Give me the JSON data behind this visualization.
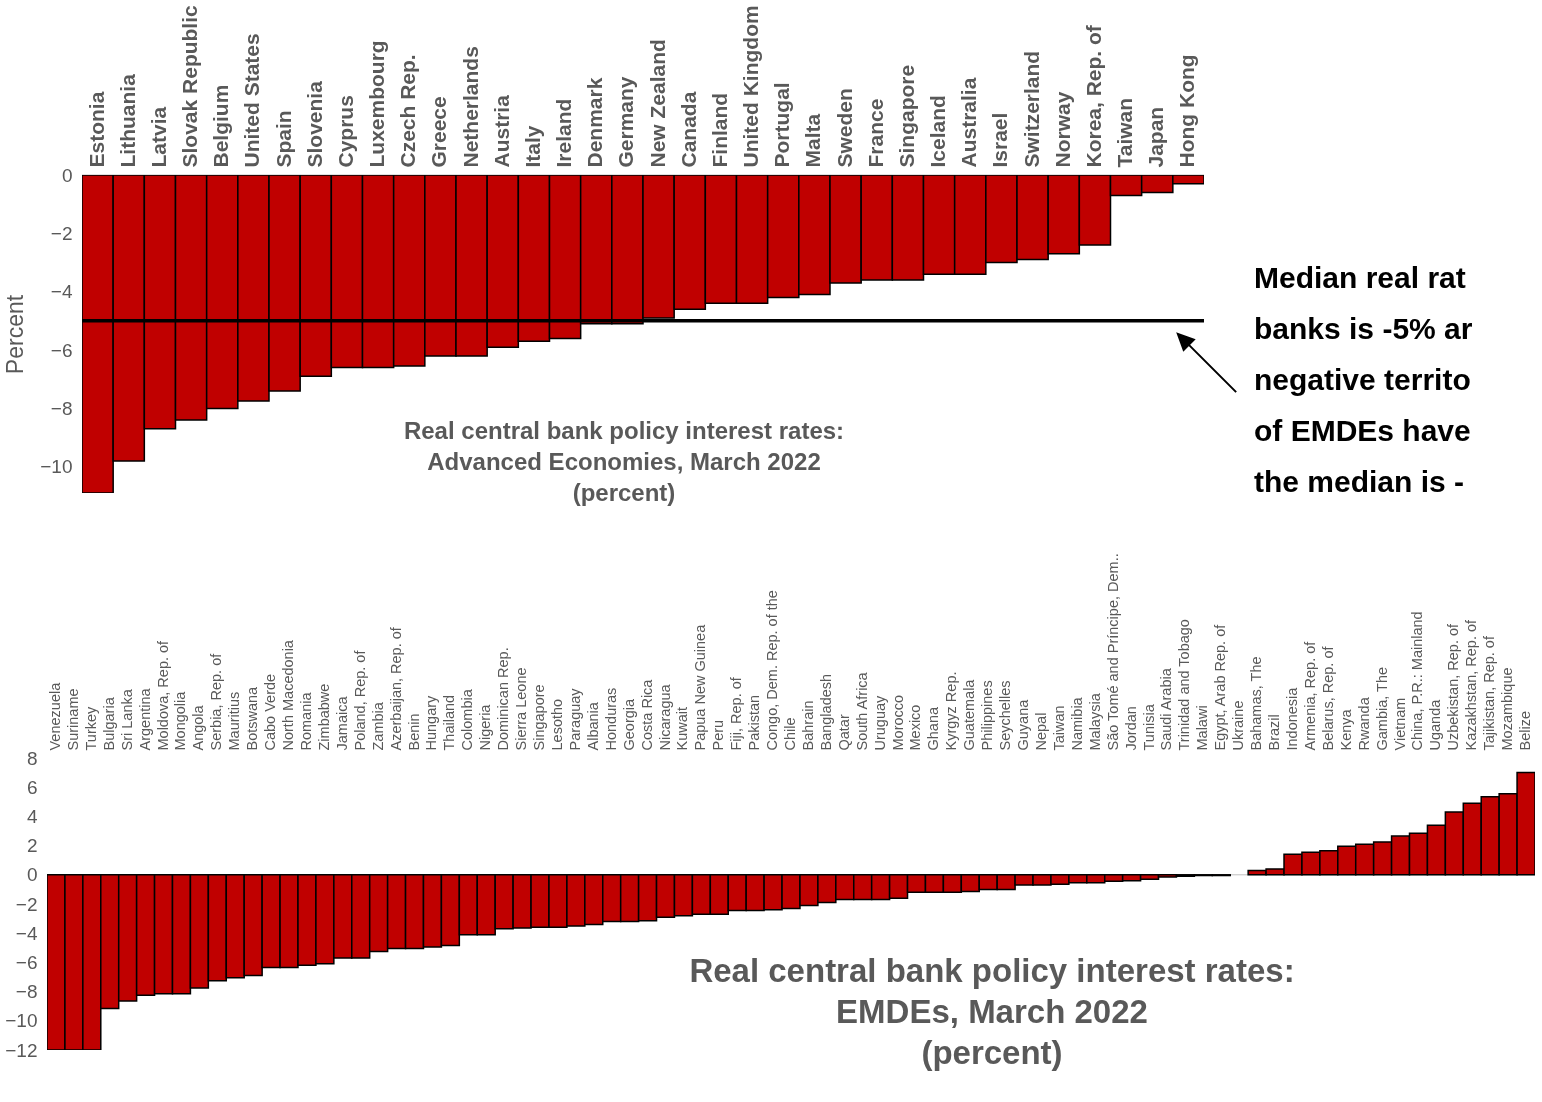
{
  "chart_data": [
    {
      "type": "bar",
      "title": "Real central bank policy interest rates:\nAdvanced Economies, March 2022\n(percent)",
      "ylabel": "Percent",
      "categories": [
        "Estonia",
        "Lithuania",
        "Latvia",
        "Slovak Republic",
        "Belgium",
        "United States",
        "Spain",
        "Slovenia",
        "Cyprus",
        "Luxembourg",
        "Czech Rep.",
        "Greece",
        "Netherlands",
        "Austria",
        "Italy",
        "Ireland",
        "Denmark",
        "Germany",
        "New Zealand",
        "Canada",
        "Finland",
        "United Kingdom",
        "Portugal",
        "Malta",
        "Sweden",
        "France",
        "Singapore",
        "Iceland",
        "Australia",
        "Israel",
        "Switzerland",
        "Norway",
        "Korea, Rep. of",
        "Taiwan",
        "Japan",
        "Hong Kong"
      ],
      "values": [
        -10.9,
        -9.8,
        -8.7,
        -8.4,
        -8.0,
        -7.75,
        -7.4,
        -6.9,
        -6.6,
        -6.6,
        -6.55,
        -6.2,
        -6.2,
        -5.9,
        -5.7,
        -5.6,
        -5.1,
        -5.1,
        -4.9,
        -4.6,
        -4.4,
        -4.4,
        -4.2,
        -4.1,
        -3.7,
        -3.6,
        -3.6,
        -3.4,
        -3.4,
        -3.0,
        -2.9,
        -2.7,
        -2.4,
        -0.7,
        -0.6,
        -0.3
      ],
      "color": "#c00000",
      "ylim": [
        -10.9,
        0
      ],
      "yticks": [
        0,
        -2,
        -4,
        -6,
        -8,
        -10
      ],
      "ref_lines": [
        {
          "axis": "y",
          "value": -5,
          "color": "#000000"
        }
      ],
      "annotations": [
        "Median real rat\nbanks is -5%  ar\nnegative territo\nof EMDEs have\nthe median is -"
      ]
    },
    {
      "type": "bar",
      "title": "Real central bank policy interest rates:\nEMDEs, March 2022\n(percent)",
      "categories": [
        "Venezuela",
        "Suriname",
        "Turkey",
        "Bulgaria",
        "Sri Lanka",
        "Argentina",
        "Moldova, Rep. of",
        "Mongolia",
        "Angola",
        "Serbia, Rep. of",
        "Mauritius",
        "Botswana",
        "Cabo Verde",
        "North Macedonia",
        "Romania",
        "Zimbabwe",
        "Jamaica",
        "Poland, Rep. of",
        "Zambia",
        "Azerbaijan, Rep. of",
        "Benin",
        "Hungary",
        "Thailand",
        "Colombia",
        "Nigeria",
        "Dominican Rep.",
        "Sierra Leone",
        "Singapore",
        "Lesotho",
        "Paraguay",
        "Albania",
        "Honduras",
        "Georgia",
        "Costa Rica",
        "Nicaragua",
        "Kuwait",
        "Papua New Guinea",
        "Peru",
        "Fiji, Rep. of",
        "Pakistan",
        "Congo, Dem. Rep. of the",
        "Chile",
        "Bahrain",
        "Bangladesh",
        "Qatar",
        "South Africa",
        "Uruguay",
        "Morocco",
        "Mexico",
        "Ghana",
        "Kyrgyz Rep.",
        "Guatemala",
        "Philippines",
        "Seychelles",
        "Guyana",
        "Nepal",
        "Taiwan",
        "Namibia",
        "Malaysia",
        "São Tomé and Príncipe, Dem..",
        "Jordan",
        "Tunisia",
        "Saudi Arabia",
        "Trinidad and Tobago",
        "Malawi",
        "Egypt, Arab Rep. of",
        "Ukraine",
        "Bahamas, The",
        "Brazil",
        "Indonesia",
        "Armenia, Rep. of",
        "Belarus, Rep. of",
        "Kenya",
        "Rwanda",
        "Gambia, The",
        "Vietnam",
        "China, P.R.: Mainland",
        "Uganda",
        "Uzbekistan, Rep. of",
        "Kazakhstan, Rep. of",
        "Tajikistan, Rep. of",
        "Mozambique",
        "Belize"
      ],
      "values": [
        -12,
        -12,
        -12,
        -9.15,
        -8.65,
        -8.25,
        -8.15,
        -8.15,
        -7.75,
        -7.25,
        -7.05,
        -6.9,
        -6.35,
        -6.35,
        -6.2,
        -6.1,
        -5.7,
        -5.7,
        -5.25,
        -5.05,
        -5.05,
        -4.95,
        -4.85,
        -4.1,
        -4.1,
        -3.7,
        -3.65,
        -3.6,
        -3.6,
        -3.5,
        -3.4,
        -3.2,
        -3.2,
        -3.15,
        -2.9,
        -2.8,
        -2.7,
        -2.7,
        -2.45,
        -2.45,
        -2.4,
        -2.3,
        -2.1,
        -1.9,
        -1.7,
        -1.7,
        -1.7,
        -1.6,
        -1.2,
        -1.2,
        -1.2,
        -1.15,
        -1.0,
        -1.0,
        -0.7,
        -0.7,
        -0.65,
        -0.55,
        -0.55,
        -0.45,
        -0.4,
        -0.3,
        -0.15,
        -0.1,
        -0.05,
        -0.05,
        0,
        0.3,
        0.4,
        1.4,
        1.55,
        1.65,
        1.95,
        2.1,
        2.25,
        2.65,
        2.85,
        3.4,
        4.3,
        4.9,
        5.35,
        5.55,
        7.0
      ],
      "color": "#c00000",
      "ylim": [
        -12,
        8
      ],
      "yticks": [
        8,
        6,
        4,
        2,
        0,
        -2,
        -4,
        -6,
        -8,
        -10,
        -12
      ]
    }
  ]
}
